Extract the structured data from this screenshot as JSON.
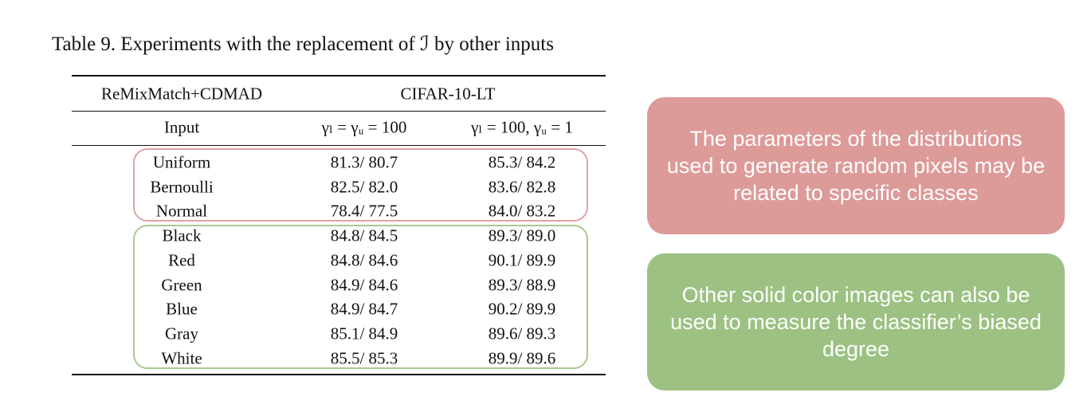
{
  "caption": "Table 9. Experiments with the replacement of ℐ by other inputs",
  "table": {
    "header": [
      "ReMixMatch+CDMAD",
      "CIFAR-10-LT"
    ],
    "subheader": [
      "Input",
      "γₗ = γᵤ = 100",
      "γₗ = 100, γᵤ = 1"
    ],
    "rows": [
      [
        "Uniform",
        "81.3/ 80.7",
        "85.3/ 84.2"
      ],
      [
        "Bernoulli",
        "82.5/ 82.0",
        "83.6/ 82.8"
      ],
      [
        "Normal",
        "78.4/ 77.5",
        "84.0/ 83.2"
      ],
      [
        "Black",
        "84.8/ 84.5",
        "89.3/ 89.0"
      ],
      [
        "Red",
        "84.8/ 84.6",
        "90.1/ 89.9"
      ],
      [
        "Green",
        "84.9/ 84.6",
        "89.3/ 88.9"
      ],
      [
        "Blue",
        "84.9/ 84.7",
        "90.2/ 89.9"
      ],
      [
        "Gray",
        "85.1/ 84.9",
        "89.6/ 89.3"
      ],
      [
        "White",
        "85.5/ 85.3",
        "89.9/ 89.6"
      ]
    ]
  },
  "notes": [
    "The parameters of the distributions used to generate random pixels may be related to specific classes",
    "Other solid color images can also be used to measure the classifier’s biased degree"
  ]
}
